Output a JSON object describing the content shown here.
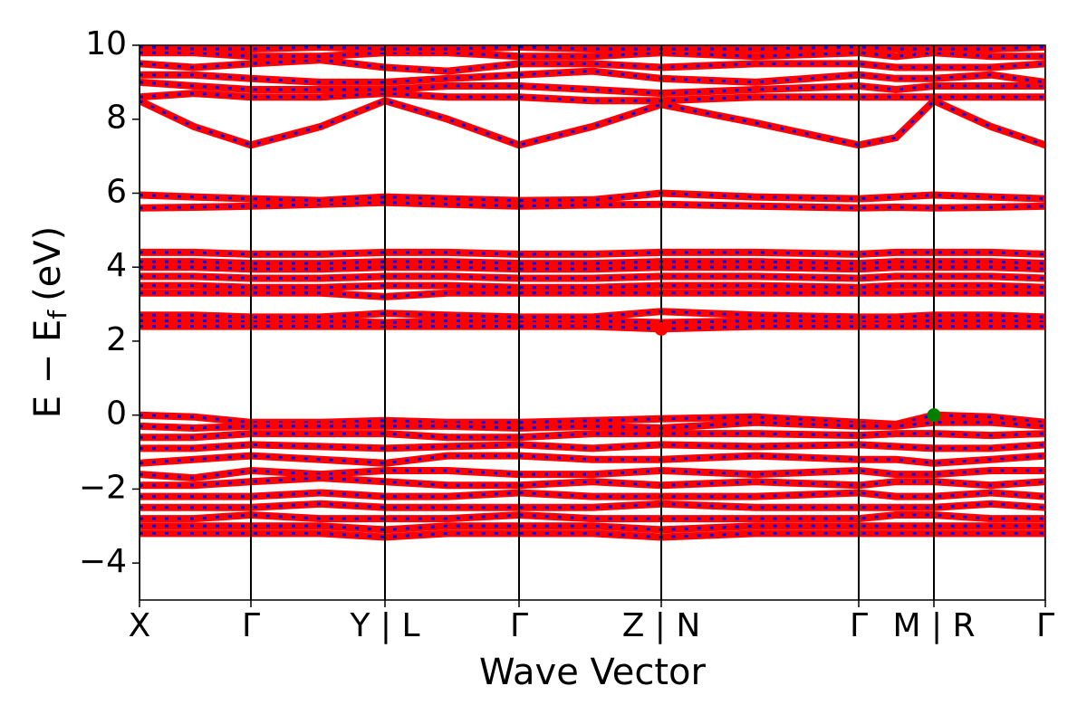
{
  "chart_data": {
    "type": "band-structure",
    "xlabel": "Wave Vector",
    "ylabel": "E − E",
    "ylabel_subscript": "f",
    "ylabel_unit": "(eV)",
    "xlim": [
      0,
      10
    ],
    "ylim": [
      -5,
      10
    ],
    "xticks": [
      {
        "value": 0,
        "label": "X"
      },
      {
        "value": 1.23,
        "label": "Γ"
      },
      {
        "value": 2.71,
        "label": "Y | L"
      },
      {
        "value": 4.19,
        "label": "Γ"
      },
      {
        "value": 5.76,
        "label": "Z | N"
      },
      {
        "value": 7.94,
        "label": "Γ"
      },
      {
        "value": 8.77,
        "label": "M | R"
      },
      {
        "value": 10,
        "label": "Γ"
      }
    ],
    "yticks": [
      {
        "value": -4,
        "label": "−4"
      },
      {
        "value": -2,
        "label": "−2"
      },
      0,
      2,
      4,
      6,
      8,
      10
    ],
    "color": "#ff0000",
    "dash_color": "#0000ff",
    "x": [
      0,
      0.6,
      1.23,
      2.0,
      2.71,
      3.4,
      4.19,
      5.0,
      5.76,
      6.8,
      7.94,
      8.35,
      8.77,
      9.4,
      10
    ],
    "series": [
      {
        "values": [
          0,
          -0.05,
          -0.2,
          -0.2,
          -0.15,
          -0.2,
          -0.2,
          -0.15,
          -0.1,
          -0.05,
          -0.2,
          -0.25,
          0,
          -0.05,
          -0.2
        ]
      },
      {
        "values": [
          -0.3,
          -0.35,
          -0.3,
          -0.3,
          -0.3,
          -0.3,
          -0.35,
          -0.3,
          -0.35,
          -0.2,
          -0.3,
          -0.3,
          -0.2,
          -0.2,
          -0.3
        ]
      },
      {
        "values": [
          -0.6,
          -0.6,
          -0.5,
          -0.5,
          -0.5,
          -0.6,
          -0.6,
          -0.5,
          -0.5,
          -0.5,
          -0.55,
          -0.5,
          -0.5,
          -0.55,
          -0.5
        ]
      },
      {
        "values": [
          -0.9,
          -0.9,
          -0.8,
          -0.85,
          -0.9,
          -0.85,
          -0.8,
          -0.9,
          -0.8,
          -0.85,
          -0.8,
          -0.85,
          -0.9,
          -0.9,
          -0.8
        ]
      },
      {
        "values": [
          -1.3,
          -1.2,
          -1.1,
          -1.2,
          -1.3,
          -1.1,
          -1.1,
          -1.2,
          -1.2,
          -1.1,
          -1.2,
          -1.2,
          -1.3,
          -1.2,
          -1.1
        ]
      },
      {
        "values": [
          -1.6,
          -1.7,
          -1.5,
          -1.6,
          -1.5,
          -1.5,
          -1.6,
          -1.6,
          -1.5,
          -1.6,
          -1.5,
          -1.6,
          -1.6,
          -1.5,
          -1.5
        ]
      },
      {
        "values": [
          -1.9,
          -1.9,
          -1.8,
          -1.7,
          -1.8,
          -1.9,
          -1.9,
          -1.8,
          -1.9,
          -1.8,
          -1.9,
          -1.8,
          -1.8,
          -1.9,
          -1.8
        ]
      },
      {
        "values": [
          -2.2,
          -2.2,
          -2.2,
          -2.1,
          -2.2,
          -2.2,
          -2.1,
          -2.2,
          -2.2,
          -2.2,
          -2.1,
          -2.2,
          -2.2,
          -2.1,
          -2.2
        ]
      },
      {
        "values": [
          -2.5,
          -2.5,
          -2.5,
          -2.4,
          -2.5,
          -2.5,
          -2.5,
          -2.5,
          -2.4,
          -2.5,
          -2.5,
          -2.5,
          -2.5,
          -2.4,
          -2.5
        ]
      },
      {
        "values": [
          -2.8,
          -2.8,
          -2.7,
          -2.8,
          -2.8,
          -2.8,
          -2.7,
          -2.8,
          -2.8,
          -2.8,
          -2.8,
          -2.7,
          -2.7,
          -2.8,
          -2.8
        ]
      },
      {
        "values": [
          -3.0,
          -3.0,
          -3.0,
          -3.0,
          -3.1,
          -3.0,
          -3.0,
          -3.0,
          -3.1,
          -3.0,
          -3.0,
          -3.0,
          -3.0,
          -3.0,
          -3.0
        ]
      },
      {
        "values": [
          -3.2,
          -3.2,
          -3.2,
          -3.2,
          -3.3,
          -3.2,
          -3.2,
          -3.2,
          -3.3,
          -3.2,
          -3.2,
          -3.2,
          -3.2,
          -3.2,
          -3.2
        ]
      },
      {
        "values": [
          2.4,
          2.4,
          2.4,
          2.4,
          2.4,
          2.4,
          2.4,
          2.4,
          2.33,
          2.4,
          2.4,
          2.4,
          2.4,
          2.4,
          2.4
        ]
      },
      {
        "values": [
          2.55,
          2.55,
          2.55,
          2.55,
          2.5,
          2.55,
          2.55,
          2.55,
          2.5,
          2.55,
          2.55,
          2.55,
          2.55,
          2.55,
          2.55
        ]
      },
      {
        "values": [
          2.7,
          2.7,
          2.65,
          2.65,
          2.75,
          2.7,
          2.65,
          2.65,
          2.8,
          2.7,
          2.65,
          2.65,
          2.7,
          2.7,
          2.65
        ]
      },
      {
        "values": [
          3.3,
          3.3,
          3.3,
          3.3,
          3.2,
          3.3,
          3.3,
          3.3,
          3.3,
          3.3,
          3.3,
          3.3,
          3.3,
          3.3,
          3.3
        ]
      },
      {
        "values": [
          3.5,
          3.5,
          3.45,
          3.45,
          3.5,
          3.5,
          3.45,
          3.45,
          3.5,
          3.5,
          3.45,
          3.5,
          3.5,
          3.5,
          3.45
        ]
      },
      {
        "values": [
          3.75,
          3.75,
          3.7,
          3.7,
          3.75,
          3.75,
          3.7,
          3.7,
          3.75,
          3.75,
          3.7,
          3.75,
          3.75,
          3.75,
          3.7
        ]
      },
      {
        "values": [
          4.0,
          4.0,
          3.95,
          3.95,
          4.0,
          4.0,
          3.95,
          3.95,
          4.0,
          4.0,
          3.95,
          4.0,
          4.0,
          4.0,
          3.95
        ]
      },
      {
        "values": [
          4.15,
          4.15,
          4.1,
          4.1,
          4.15,
          4.15,
          4.1,
          4.1,
          4.15,
          4.15,
          4.1,
          4.15,
          4.15,
          4.15,
          4.1
        ]
      },
      {
        "values": [
          4.4,
          4.4,
          4.35,
          4.35,
          4.4,
          4.4,
          4.35,
          4.35,
          4.4,
          4.4,
          4.35,
          4.4,
          4.4,
          4.4,
          4.35
        ]
      },
      {
        "values": [
          5.6,
          5.62,
          5.65,
          5.7,
          5.75,
          5.7,
          5.65,
          5.68,
          5.7,
          5.65,
          5.6,
          5.62,
          5.6,
          5.62,
          5.65
        ]
      },
      {
        "values": [
          5.95,
          5.9,
          5.85,
          5.8,
          5.9,
          5.85,
          5.8,
          5.82,
          6.0,
          5.9,
          5.85,
          5.9,
          5.95,
          5.9,
          5.85
        ]
      },
      {
        "values": [
          8.5,
          7.8,
          7.3,
          7.8,
          8.5,
          8.0,
          7.3,
          7.8,
          8.4,
          7.9,
          7.3,
          7.5,
          8.5,
          7.8,
          7.3
        ]
      },
      {
        "values": [
          8.6,
          8.7,
          8.6,
          8.6,
          8.7,
          8.6,
          8.6,
          8.5,
          8.5,
          8.6,
          8.6,
          8.6,
          8.6,
          8.6,
          8.6
        ]
      },
      {
        "values": [
          9.0,
          8.9,
          8.8,
          8.8,
          8.8,
          8.9,
          8.9,
          8.8,
          8.7,
          8.8,
          8.9,
          8.8,
          8.9,
          8.9,
          8.9
        ]
      },
      {
        "values": [
          9.2,
          9.2,
          9.1,
          9.0,
          9.0,
          9.1,
          9.2,
          9.3,
          9.1,
          9.0,
          9.2,
          9.1,
          9.1,
          9.2,
          9.0
        ]
      },
      {
        "values": [
          9.5,
          9.4,
          9.5,
          9.6,
          9.4,
          9.3,
          9.5,
          9.5,
          9.4,
          9.5,
          9.5,
          9.4,
          9.4,
          9.4,
          9.5
        ]
      },
      {
        "values": [
          9.8,
          9.8,
          9.7,
          9.7,
          9.8,
          9.8,
          9.7,
          9.7,
          9.8,
          9.7,
          9.8,
          9.7,
          9.8,
          9.7,
          9.7
        ]
      },
      {
        "values": [
          9.95,
          9.9,
          9.9,
          9.95,
          9.9,
          9.9,
          9.95,
          9.9,
          9.9,
          9.9,
          9.95,
          9.9,
          9.9,
          9.9,
          9.95
        ]
      }
    ],
    "points": [
      {
        "x": 5.76,
        "y": 2.33,
        "color": "#ff0000"
      },
      {
        "x": 8.77,
        "y": 0,
        "color": "#008000"
      }
    ]
  }
}
